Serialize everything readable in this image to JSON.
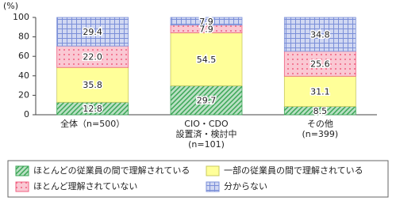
{
  "chart_data": {
    "type": "stacked_bar",
    "y_unit": "(%)",
    "categories": [
      [
        "全体（n=500）"
      ],
      [
        "CIO・CDO",
        "設置済・検討中",
        "(n=101)"
      ],
      [
        "その他",
        "(n=399)"
      ]
    ],
    "series": [
      {
        "name": "ほとんどの従業員の間で理解されている",
        "color": "#3aa655",
        "pattern": "diagonal",
        "values": [
          12.8,
          29.7,
          8.5
        ]
      },
      {
        "name": "一部の従業員の間で理解されている",
        "color": "#ffff99",
        "pattern": "solid",
        "values": [
          35.8,
          54.5,
          31.1
        ]
      },
      {
        "name": "ほとんど理解されていない",
        "color": "#f06080",
        "pattern": "dots",
        "values": [
          22.0,
          7.9,
          25.6
        ],
        "value_labels": [
          "22.0",
          "7.9",
          "25.6"
        ]
      },
      {
        "name": "分からない",
        "color": "#7b8fd8",
        "pattern": "grid",
        "values": [
          29.4,
          7.9,
          34.8
        ]
      }
    ],
    "ylim": [
      0,
      100
    ],
    "yticks": [
      0,
      20,
      40,
      60,
      80,
      100
    ],
    "grid": false,
    "legend": "bottom"
  }
}
